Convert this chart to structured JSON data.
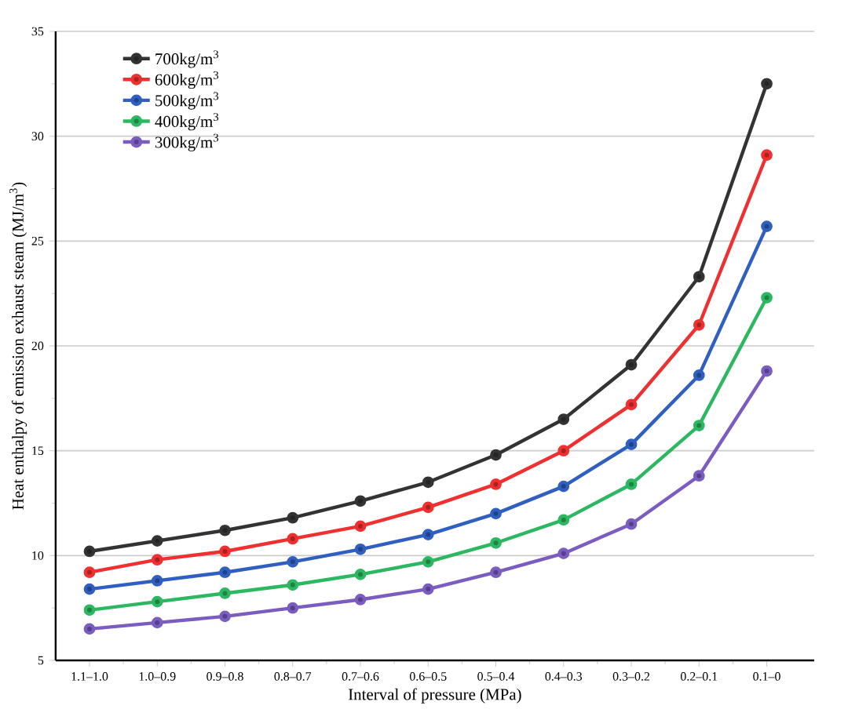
{
  "chart_data": {
    "type": "line",
    "xlabel": "Interval of pressure (MPa)",
    "ylabel": "Heat enthalpy of emission exhaust steam (MJ/m$^{3}$)",
    "categories": [
      "1.1–1.0",
      "1.0–0.9",
      "0.9–0.8",
      "0.8–0.7",
      "0.7–0.6",
      "0.6–0.5",
      "0.5–0.4",
      "0.4–0.3",
      "0.3–0.2",
      "0.2–0.1",
      "0.1–0"
    ],
    "ylim": [
      5,
      35
    ],
    "yticks": [
      5,
      10,
      15,
      20,
      25,
      30,
      35
    ],
    "grid": "y",
    "legend": "top left",
    "marker": "circle",
    "line_style": "solid",
    "series": [
      {
        "name": "700kg/m$^{3}$",
        "color": "#333333",
        "values": [
          10.2,
          10.7,
          11.2,
          11.8,
          12.6,
          13.5,
          14.8,
          16.5,
          19.1,
          23.3,
          32.5
        ]
      },
      {
        "name": "600kg/m$^{3}$",
        "color": "#f03030",
        "values": [
          9.2,
          9.8,
          10.2,
          10.8,
          11.4,
          12.3,
          13.4,
          15.0,
          17.2,
          21.0,
          29.1
        ]
      },
      {
        "name": "500kg/m$^{3}$",
        "color": "#2f5fc0",
        "values": [
          8.4,
          8.8,
          9.2,
          9.7,
          10.3,
          11.0,
          12.0,
          13.3,
          15.3,
          18.6,
          25.7
        ]
      },
      {
        "name": "400kg/m$^{3}$",
        "color": "#2cb860",
        "values": [
          7.4,
          7.8,
          8.2,
          8.6,
          9.1,
          9.7,
          10.6,
          11.7,
          13.4,
          16.2,
          22.3
        ]
      },
      {
        "name": "300kg/m$^{3}$",
        "color": "#7b5cc0",
        "values": [
          6.5,
          6.8,
          7.1,
          7.5,
          7.9,
          8.4,
          9.2,
          10.1,
          11.5,
          13.8,
          18.8
        ]
      }
    ]
  }
}
